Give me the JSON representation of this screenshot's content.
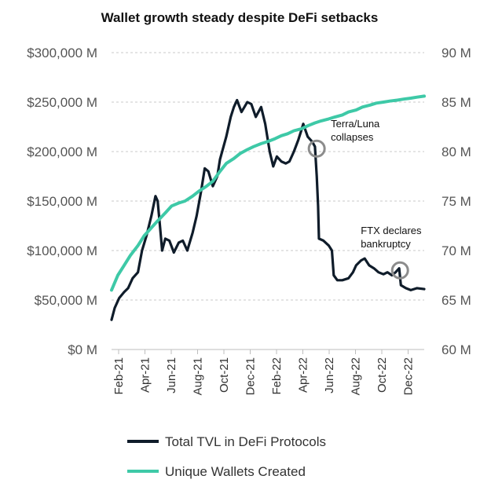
{
  "chart_data": {
    "type": "line",
    "title": "Wallet growth steady despite DeFi setbacks",
    "x_ticks": [
      "Feb-21",
      "Apr-21",
      "Jun-21",
      "Aug-21",
      "Oct-21",
      "Dec-21",
      "Feb-22",
      "Apr-22",
      "Jun-22",
      "Aug-22",
      "Oct-22",
      "Dec-22"
    ],
    "x_range": [
      "2021-02-01",
      "2022-12-31"
    ],
    "y_left": {
      "ylim": [
        0,
        300000
      ],
      "ticks": [
        0,
        50000,
        100000,
        150000,
        200000,
        250000,
        300000
      ],
      "tick_labels": [
        "$0 M",
        "$50,000 M",
        "$100,000 M",
        "$150,000 M",
        "$200,000 M",
        "$250,000 M",
        "$300,000 M"
      ]
    },
    "y_right": {
      "ylim": [
        60,
        90
      ],
      "ticks": [
        60,
        65,
        70,
        75,
        80,
        85,
        90
      ],
      "tick_labels": [
        "60 M",
        "65 M",
        "70 M",
        "75 M",
        "80 M",
        "85 M",
        "90 M"
      ]
    },
    "grid": true,
    "legend_placement": "bottom",
    "series": [
      {
        "name": "Total TVL in DeFi Protocols",
        "axis": "left",
        "color": "#0f1c2a",
        "points": [
          [
            "2021-02-01",
            30000
          ],
          [
            "2021-02-08",
            42000
          ],
          [
            "2021-02-18",
            52000
          ],
          [
            "2021-03-01",
            58000
          ],
          [
            "2021-03-10",
            62000
          ],
          [
            "2021-03-20",
            72000
          ],
          [
            "2021-04-01",
            78000
          ],
          [
            "2021-04-10",
            100000
          ],
          [
            "2021-04-20",
            115000
          ],
          [
            "2021-05-01",
            135000
          ],
          [
            "2021-05-10",
            155000
          ],
          [
            "2021-05-15",
            150000
          ],
          [
            "2021-05-20",
            125000
          ],
          [
            "2021-05-25",
            100000
          ],
          [
            "2021-06-01",
            112000
          ],
          [
            "2021-06-10",
            110000
          ],
          [
            "2021-06-20",
            98000
          ],
          [
            "2021-07-01",
            108000
          ],
          [
            "2021-07-10",
            110000
          ],
          [
            "2021-07-20",
            100000
          ],
          [
            "2021-08-01",
            118000
          ],
          [
            "2021-08-10",
            135000
          ],
          [
            "2021-08-20",
            160000
          ],
          [
            "2021-08-28",
            183000
          ],
          [
            "2021-09-05",
            180000
          ],
          [
            "2021-09-15",
            165000
          ],
          [
            "2021-09-25",
            175000
          ],
          [
            "2021-10-01",
            192000
          ],
          [
            "2021-10-15",
            215000
          ],
          [
            "2021-10-25",
            235000
          ],
          [
            "2021-11-01",
            245000
          ],
          [
            "2021-11-08",
            252000
          ],
          [
            "2021-11-18",
            240000
          ],
          [
            "2021-12-01",
            250000
          ],
          [
            "2021-12-10",
            248000
          ],
          [
            "2021-12-20",
            235000
          ],
          [
            "2022-01-01",
            245000
          ],
          [
            "2022-01-10",
            228000
          ],
          [
            "2022-01-20",
            200000
          ],
          [
            "2022-01-28",
            185000
          ],
          [
            "2022-02-05",
            195000
          ],
          [
            "2022-02-15",
            190000
          ],
          [
            "2022-02-25",
            188000
          ],
          [
            "2022-03-05",
            190000
          ],
          [
            "2022-03-15",
            200000
          ],
          [
            "2022-03-25",
            212000
          ],
          [
            "2022-04-01",
            222000
          ],
          [
            "2022-04-05",
            228000
          ],
          [
            "2022-04-15",
            215000
          ],
          [
            "2022-04-25",
            210000
          ],
          [
            "2022-05-01",
            205000
          ],
          [
            "2022-05-05",
            175000
          ],
          [
            "2022-05-08",
            145000
          ],
          [
            "2022-05-10",
            112000
          ],
          [
            "2022-05-20",
            110000
          ],
          [
            "2022-06-01",
            105000
          ],
          [
            "2022-06-08",
            100000
          ],
          [
            "2022-06-12",
            75000
          ],
          [
            "2022-06-20",
            70000
          ],
          [
            "2022-07-01",
            70000
          ],
          [
            "2022-07-15",
            72000
          ],
          [
            "2022-07-25",
            78000
          ],
          [
            "2022-08-01",
            85000
          ],
          [
            "2022-08-12",
            90000
          ],
          [
            "2022-08-20",
            92000
          ],
          [
            "2022-08-30",
            85000
          ],
          [
            "2022-09-10",
            82000
          ],
          [
            "2022-09-20",
            78000
          ],
          [
            "2022-10-01",
            76000
          ],
          [
            "2022-10-10",
            78000
          ],
          [
            "2022-10-20",
            75000
          ],
          [
            "2022-10-28",
            78000
          ],
          [
            "2022-11-05",
            82000
          ],
          [
            "2022-11-09",
            65000
          ],
          [
            "2022-11-20",
            62000
          ],
          [
            "2022-12-01",
            60000
          ],
          [
            "2022-12-15",
            62000
          ],
          [
            "2022-12-31",
            61000
          ]
        ]
      },
      {
        "name": "Unique Wallets Created",
        "axis": "right",
        "color": "#3ec9a7",
        "points": [
          [
            "2021-02-01",
            66.0
          ],
          [
            "2021-02-15",
            67.5
          ],
          [
            "2021-03-01",
            68.5
          ],
          [
            "2021-03-15",
            69.5
          ],
          [
            "2021-04-01",
            70.5
          ],
          [
            "2021-04-15",
            71.5
          ],
          [
            "2021-05-01",
            72.3
          ],
          [
            "2021-05-15",
            73.0
          ],
          [
            "2021-06-01",
            73.8
          ],
          [
            "2021-06-15",
            74.5
          ],
          [
            "2021-07-01",
            74.8
          ],
          [
            "2021-07-15",
            75.0
          ],
          [
            "2021-08-01",
            75.5
          ],
          [
            "2021-08-15",
            76.0
          ],
          [
            "2021-09-01",
            76.5
          ],
          [
            "2021-09-15",
            77.0
          ],
          [
            "2021-10-01",
            78.0
          ],
          [
            "2021-10-15",
            78.8
          ],
          [
            "2021-11-01",
            79.3
          ],
          [
            "2021-11-15",
            79.8
          ],
          [
            "2021-12-01",
            80.2
          ],
          [
            "2021-12-15",
            80.5
          ],
          [
            "2022-01-01",
            80.8
          ],
          [
            "2022-01-15",
            81.0
          ],
          [
            "2022-02-01",
            81.3
          ],
          [
            "2022-02-15",
            81.6
          ],
          [
            "2022-03-01",
            81.8
          ],
          [
            "2022-03-15",
            82.1
          ],
          [
            "2022-04-01",
            82.3
          ],
          [
            "2022-04-15",
            82.6
          ],
          [
            "2022-05-01",
            82.9
          ],
          [
            "2022-05-15",
            83.1
          ],
          [
            "2022-06-01",
            83.3
          ],
          [
            "2022-06-15",
            83.5
          ],
          [
            "2022-07-01",
            83.7
          ],
          [
            "2022-07-15",
            84.0
          ],
          [
            "2022-08-01",
            84.2
          ],
          [
            "2022-08-15",
            84.5
          ],
          [
            "2022-09-01",
            84.7
          ],
          [
            "2022-09-15",
            84.9
          ],
          [
            "2022-10-01",
            85.0
          ],
          [
            "2022-10-15",
            85.1
          ],
          [
            "2022-11-01",
            85.2
          ],
          [
            "2022-11-15",
            85.3
          ],
          [
            "2022-12-01",
            85.4
          ],
          [
            "2022-12-15",
            85.5
          ],
          [
            "2022-12-31",
            85.6
          ]
        ]
      }
    ],
    "annotations": [
      {
        "lines": [
          "Terra/Luna",
          "collapses"
        ],
        "date": "2022-05-05",
        "value": 203000
      },
      {
        "lines": [
          "FTX declares",
          "bankruptcy"
        ],
        "date": "2022-11-07",
        "value": 80000
      }
    ]
  }
}
